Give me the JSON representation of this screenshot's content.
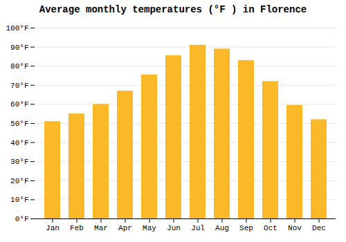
{
  "chart_data": {
    "type": "bar",
    "title": "Average monthly temperatures (°F ) in Florence",
    "categories": [
      "Jan",
      "Feb",
      "Mar",
      "Apr",
      "May",
      "Jun",
      "Jul",
      "Aug",
      "Sep",
      "Oct",
      "Nov",
      "Dec"
    ],
    "values": [
      51,
      55,
      60,
      67,
      75.5,
      85.5,
      91,
      89,
      83,
      72,
      59.5,
      52
    ],
    "color": "#FBB829",
    "ylim": [
      0,
      100
    ],
    "yticks": [
      {
        "value": 0,
        "label": "0°F"
      },
      {
        "value": 10,
        "label": "10°F"
      },
      {
        "value": 20,
        "label": "20°F"
      },
      {
        "value": 30,
        "label": "30°F"
      },
      {
        "value": 40,
        "label": "40°F"
      },
      {
        "value": 50,
        "label": "50°F"
      },
      {
        "value": 60,
        "label": "60°F"
      },
      {
        "value": 70,
        "label": "70°F"
      },
      {
        "value": 80,
        "label": "80°F"
      },
      {
        "value": 90,
        "label": "90°F"
      },
      {
        "value": 100,
        "label": "100°F"
      }
    ],
    "grid": true
  }
}
